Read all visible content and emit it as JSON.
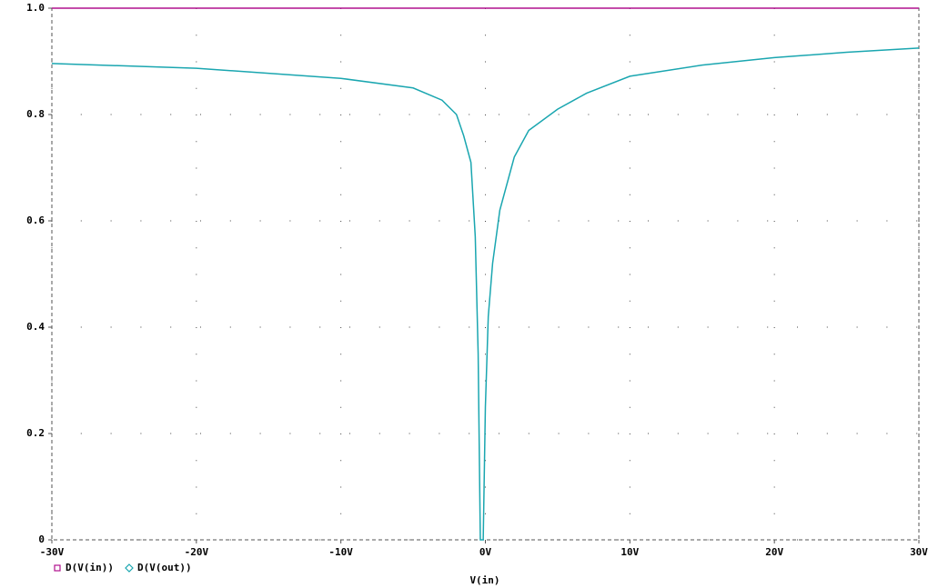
{
  "chart_data": {
    "type": "line",
    "x_label": "V(in)",
    "x": [
      -30,
      -20,
      -10,
      -5,
      -3,
      -2,
      -1.5,
      -1,
      -0.7,
      -0.5,
      -0.35,
      -0.15,
      0,
      0.2,
      0.5,
      1,
      2,
      3,
      5,
      7,
      10,
      15,
      20,
      25,
      30
    ],
    "series": [
      {
        "name": "D(V(in))",
        "color": "#b0108e",
        "marker": "square",
        "values": [
          1,
          1,
          1,
          1,
          1,
          1,
          1,
          1,
          1,
          1,
          1,
          1,
          1,
          1,
          1,
          1,
          1,
          1,
          1,
          1,
          1,
          1,
          1,
          1,
          1
        ]
      },
      {
        "name": "D(V(out))",
        "color": "#1aa6b0",
        "marker": "diamond",
        "values": [
          0.896,
          0.887,
          0.868,
          0.85,
          0.827,
          0.8,
          0.76,
          0.71,
          0.57,
          0.35,
          0,
          0,
          0.25,
          0.42,
          0.52,
          0.62,
          0.72,
          0.77,
          0.81,
          0.84,
          0.872,
          0.893,
          0.907,
          0.917,
          0.925
        ]
      }
    ],
    "xlim": [
      -30,
      30
    ],
    "xticks": [
      {
        "value": -30,
        "label": "-30V"
      },
      {
        "value": -20,
        "label": "-20V"
      },
      {
        "value": -10,
        "label": "-10V"
      },
      {
        "value": 0,
        "label": "0V"
      },
      {
        "value": 10,
        "label": "10V"
      },
      {
        "value": 20,
        "label": "20V"
      },
      {
        "value": 30,
        "label": "30V"
      }
    ],
    "ylim": [
      0,
      1
    ],
    "yticks": [
      0,
      0.2,
      0.4,
      0.6,
      0.8,
      {
        "value": 1,
        "label": "1.0"
      }
    ],
    "grid": true
  }
}
